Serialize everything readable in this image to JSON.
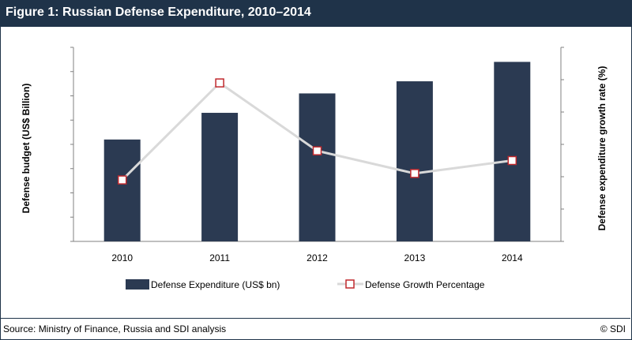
{
  "header": {
    "title": "Figure 1: Russian Defense Expenditure, 2010–2014"
  },
  "footer": {
    "source": "Source: Ministry of Finance, Russia and SDI analysis",
    "copyright": "© SDI"
  },
  "colors": {
    "bar": "#2b3a52",
    "line": "#d9d9d9",
    "marker_fill": "#ffffff",
    "marker_stroke": "#c0282d",
    "header_bg": "#1f3349"
  },
  "chart_data": {
    "type": "bar",
    "title": "Figure 1: Russian Defense Expenditure, 2010–2014",
    "categories": [
      "2010",
      "2011",
      "2012",
      "2013",
      "2014"
    ],
    "ylabel": "Defense budget (US$ Billion)",
    "y2label": "Defense expenditure growth rate (%)",
    "ylim": [
      0,
      8
    ],
    "y2lim": [
      0,
      6
    ],
    "y_tick_labels_shown": false,
    "series": [
      {
        "name": "Defense Expenditure (US$ bn)",
        "type": "bar",
        "axis": "left",
        "values": [
          4.2,
          5.3,
          6.1,
          6.6,
          7.4
        ]
      },
      {
        "name": "Defense Growth Percentage",
        "type": "line",
        "axis": "right",
        "values": [
          1.9,
          4.9,
          2.8,
          2.1,
          2.5
        ]
      }
    ],
    "legend_position": "bottom",
    "grid": false
  }
}
